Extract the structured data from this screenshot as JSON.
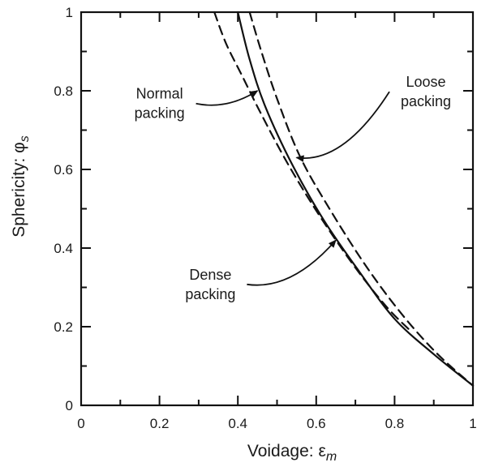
{
  "chart_data": {
    "type": "line",
    "xlabel": "Voidage: ε",
    "xlabel_sub": "m",
    "ylabel": "Sphericity: φ",
    "ylabel_sub": "s",
    "xlim": [
      0,
      1
    ],
    "ylim": [
      0,
      1
    ],
    "x_ticks": [
      "0",
      "0.2",
      "0.4",
      "0.6",
      "0.8",
      "1"
    ],
    "x_tick_values": [
      0,
      0.2,
      0.4,
      0.6,
      0.8,
      1
    ],
    "y_ticks": [
      "0",
      "0.2",
      "0.4",
      "0.6",
      "0.8",
      "1"
    ],
    "y_tick_values": [
      0,
      0.2,
      0.4,
      0.6,
      0.8,
      1
    ],
    "grid": false,
    "series": [
      {
        "style": "dashed",
        "x": [
          0.34,
          0.37,
          0.41,
          0.46,
          0.53,
          0.61,
          0.7,
          0.78,
          0.84
        ],
        "y": [
          1.0,
          0.92,
          0.84,
          0.74,
          0.61,
          0.48,
          0.35,
          0.25,
          0.19
        ]
      },
      {
        "style": "solid",
        "x": [
          0.4,
          0.43,
          0.47,
          0.54,
          0.62,
          0.71,
          0.8,
          0.9,
          1.0
        ],
        "y": [
          1.0,
          0.88,
          0.76,
          0.61,
          0.47,
          0.34,
          0.22,
          0.13,
          0.05
        ]
      },
      {
        "style": "dashed",
        "x": [
          0.43,
          0.46,
          0.5,
          0.56,
          0.64,
          0.73,
          0.82,
          0.91,
          1.0
        ],
        "y": [
          1.0,
          0.9,
          0.78,
          0.63,
          0.49,
          0.35,
          0.23,
          0.13,
          0.05
        ]
      }
    ],
    "annotations": [
      {
        "lines": [
          "Normal",
          "packing"
        ],
        "x": 0.2,
        "y": 0.78,
        "arrow_to": [
          0.45,
          0.8
        ]
      },
      {
        "lines": [
          "Loose",
          "packing"
        ],
        "x": 0.88,
        "y": 0.81,
        "arrow_to": [
          0.55,
          0.63
        ]
      },
      {
        "lines": [
          "Dense",
          "packing"
        ],
        "x": 0.33,
        "y": 0.32,
        "arrow_to": [
          0.65,
          0.42
        ]
      }
    ]
  }
}
